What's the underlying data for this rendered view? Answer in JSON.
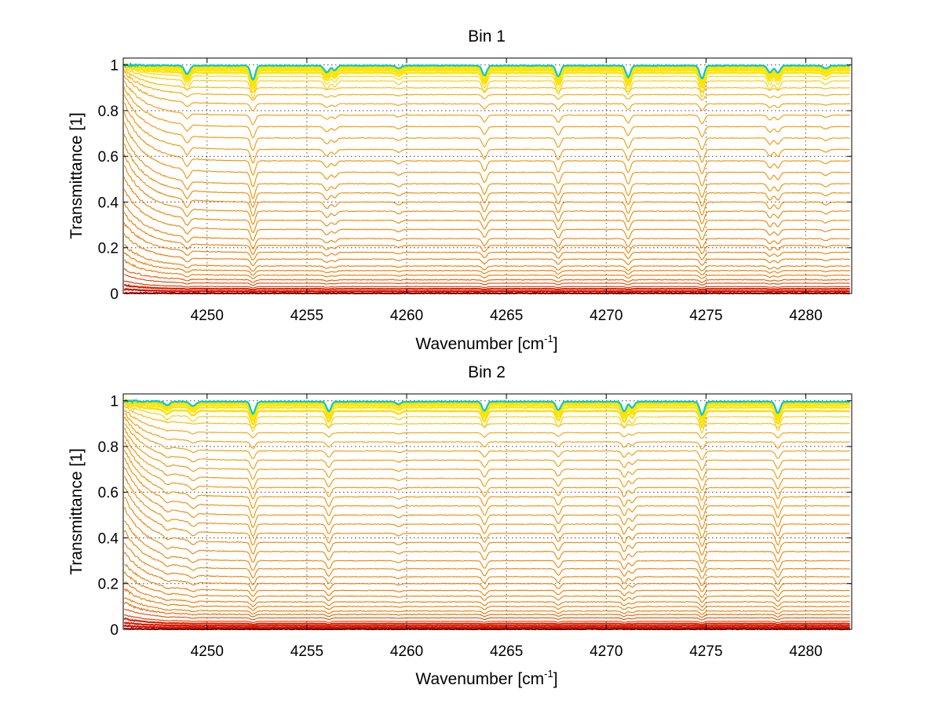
{
  "chart_data": [
    {
      "type": "line",
      "title": "Bin 1",
      "xlabel_main": "Wavenumber [cm",
      "xlabel_sup": "-1",
      "xlabel_end": "]",
      "ylabel": "Transmittance [1]",
      "xlim": [
        4245.8,
        4282.3
      ],
      "ylim": [
        0,
        1.03
      ],
      "xticks": [
        4250,
        4255,
        4260,
        4265,
        4270,
        4275,
        4280
      ],
      "yticks": [
        0,
        0.2,
        0.4,
        0.6,
        0.8,
        1
      ],
      "ytick_labels": [
        "0",
        "0.2",
        "0.4",
        "0.6",
        "0.8",
        "1"
      ],
      "grid": true,
      "absorption_lines": [
        {
          "x": 4249.0,
          "depth": 0.35,
          "width": 0.18
        },
        {
          "x": 4252.3,
          "depth": 0.6,
          "width": 0.16
        },
        {
          "x": 4256.0,
          "depth": 0.28,
          "width": 0.18
        },
        {
          "x": 4256.4,
          "depth": 0.2,
          "width": 0.15
        },
        {
          "x": 4259.6,
          "depth": 0.12,
          "width": 0.18
        },
        {
          "x": 4263.9,
          "depth": 0.42,
          "width": 0.16
        },
        {
          "x": 4267.6,
          "depth": 0.45,
          "width": 0.16
        },
        {
          "x": 4271.1,
          "depth": 0.48,
          "width": 0.16
        },
        {
          "x": 4274.8,
          "depth": 0.55,
          "width": 0.16
        },
        {
          "x": 4278.2,
          "depth": 0.3,
          "width": 0.16
        },
        {
          "x": 4278.6,
          "depth": 0.3,
          "width": 0.16
        },
        {
          "x": 4281.0,
          "depth": 0.12,
          "width": 0.18
        }
      ],
      "series_levels": [
        0.0,
        0.01,
        0.02,
        0.03,
        0.045,
        0.06,
        0.08,
        0.1,
        0.12,
        0.15,
        0.18,
        0.21,
        0.24,
        0.28,
        0.32,
        0.36,
        0.4,
        0.44,
        0.48,
        0.53,
        0.58,
        0.63,
        0.68,
        0.73,
        0.78,
        0.83,
        0.87,
        0.9,
        0.93,
        0.95,
        0.965,
        0.975,
        0.982,
        0.988,
        0.992,
        0.995,
        0.997
      ]
    },
    {
      "type": "line",
      "title": "Bin 2",
      "xlabel_main": "Wavenumber [cm",
      "xlabel_sup": "-1",
      "xlabel_end": "]",
      "ylabel": "Transmittance [1]",
      "xlim": [
        4245.8,
        4282.3
      ],
      "ylim": [
        0,
        1.03
      ],
      "xticks": [
        4250,
        4255,
        4260,
        4265,
        4270,
        4275,
        4280
      ],
      "yticks": [
        0,
        0.2,
        0.4,
        0.6,
        0.8,
        1
      ],
      "ytick_labels": [
        "0",
        "0.2",
        "0.4",
        "0.6",
        "0.8",
        "1"
      ],
      "grid": true,
      "absorption_lines": [
        {
          "x": 4248.0,
          "depth": 0.15,
          "width": 0.2
        },
        {
          "x": 4249.3,
          "depth": 0.18,
          "width": 0.2
        },
        {
          "x": 4252.3,
          "depth": 0.5,
          "width": 0.16
        },
        {
          "x": 4256.1,
          "depth": 0.4,
          "width": 0.16
        },
        {
          "x": 4259.6,
          "depth": 0.1,
          "width": 0.18
        },
        {
          "x": 4263.9,
          "depth": 0.38,
          "width": 0.16
        },
        {
          "x": 4267.6,
          "depth": 0.35,
          "width": 0.16
        },
        {
          "x": 4270.9,
          "depth": 0.4,
          "width": 0.16
        },
        {
          "x": 4271.3,
          "depth": 0.25,
          "width": 0.15
        },
        {
          "x": 4274.8,
          "depth": 0.55,
          "width": 0.16
        },
        {
          "x": 4278.6,
          "depth": 0.48,
          "width": 0.16
        }
      ],
      "series_levels": [
        0.0,
        0.008,
        0.016,
        0.025,
        0.035,
        0.05,
        0.065,
        0.08,
        0.1,
        0.12,
        0.145,
        0.17,
        0.2,
        0.23,
        0.265,
        0.3,
        0.34,
        0.38,
        0.42,
        0.46,
        0.5,
        0.54,
        0.58,
        0.62,
        0.66,
        0.7,
        0.74,
        0.78,
        0.82,
        0.86,
        0.9,
        0.93,
        0.955,
        0.97,
        0.98,
        0.987,
        0.992,
        0.996
      ]
    }
  ],
  "colors": {
    "low": "#d10000",
    "mid": "#ee7a00",
    "high": "#ffe400",
    "top": "#00c8d8"
  }
}
